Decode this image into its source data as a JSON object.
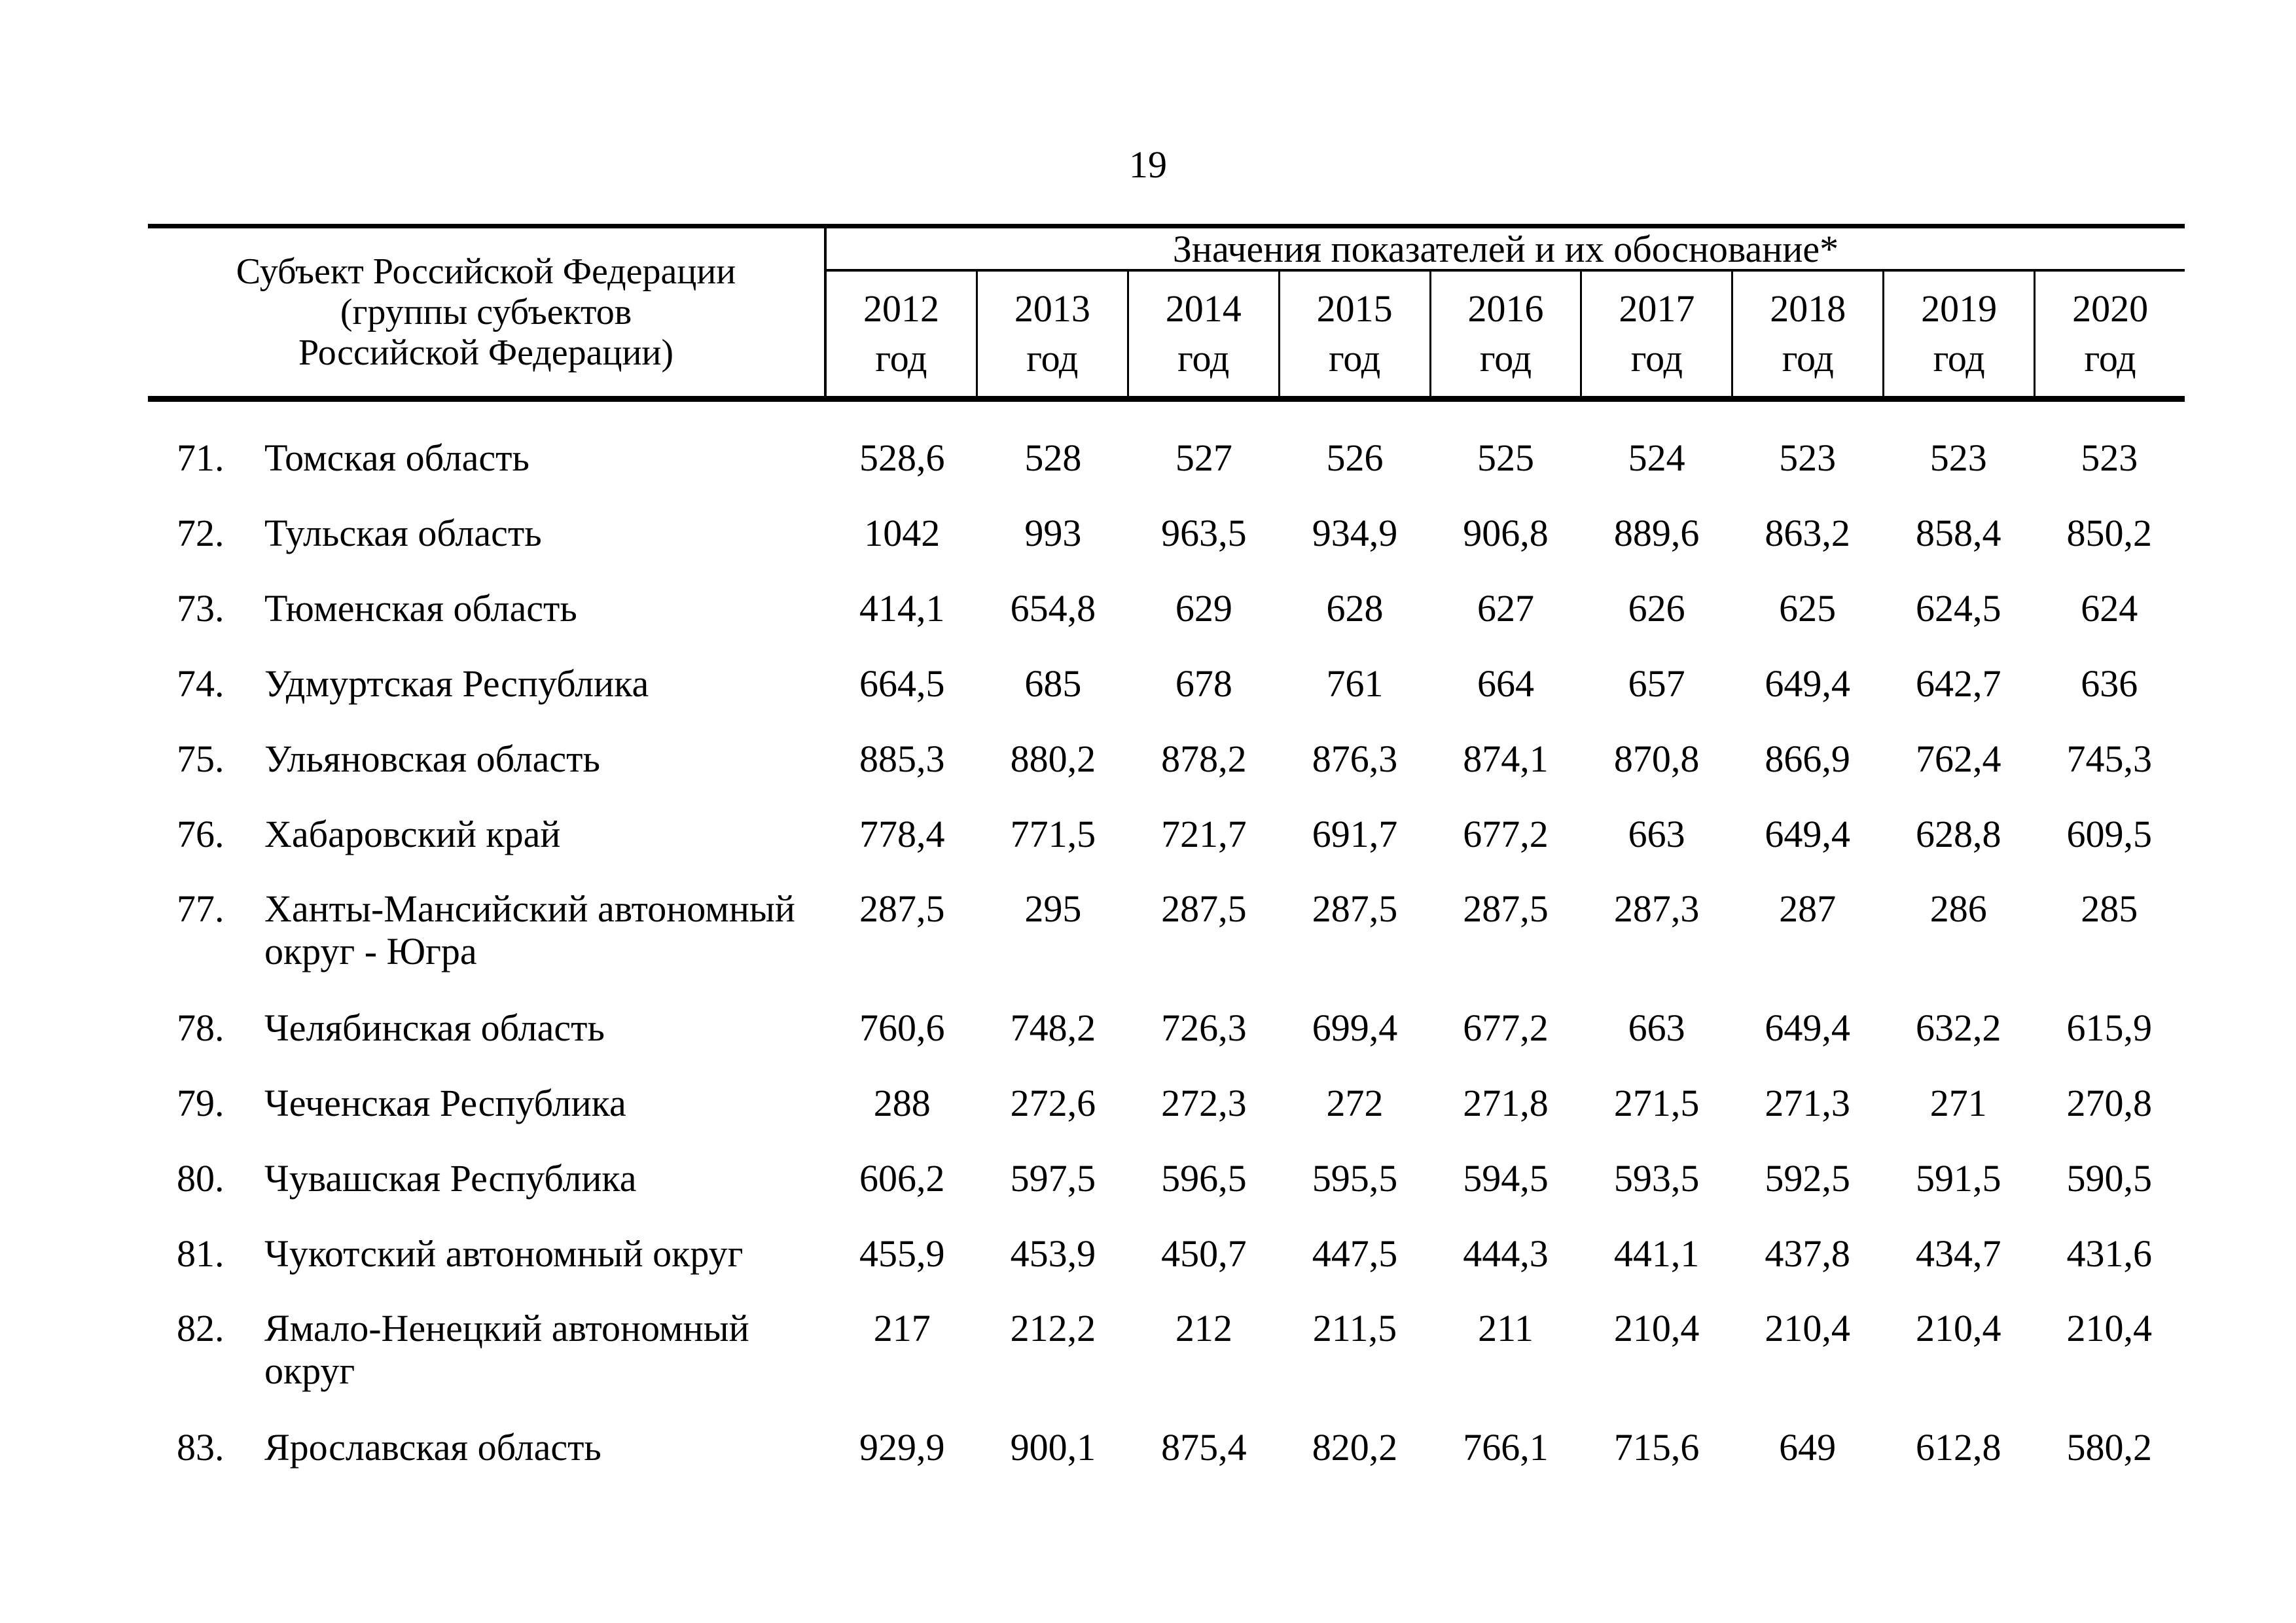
{
  "page": {
    "number": "19"
  },
  "table": {
    "subject_header_lines": [
      "Субъект Российской Федерации",
      "(группы субъектов",
      "Российской Федерации)"
    ],
    "values_header": "Значения показателей и их обоснование*",
    "years": [
      {
        "year": "2012",
        "unit": "год"
      },
      {
        "year": "2013",
        "unit": "год"
      },
      {
        "year": "2014",
        "unit": "год"
      },
      {
        "year": "2015",
        "unit": "год"
      },
      {
        "year": "2016",
        "unit": "год"
      },
      {
        "year": "2017",
        "unit": "год"
      },
      {
        "year": "2018",
        "unit": "год"
      },
      {
        "year": "2019",
        "unit": "год"
      },
      {
        "year": "2020",
        "unit": "год"
      }
    ],
    "rows": [
      {
        "num": "71.",
        "name": "Томская область",
        "name2": "",
        "values": [
          "528,6",
          "528",
          "527",
          "526",
          "525",
          "524",
          "523",
          "523",
          "523"
        ]
      },
      {
        "num": "72.",
        "name": "Тульская область",
        "name2": "",
        "values": [
          "1042",
          "993",
          "963,5",
          "934,9",
          "906,8",
          "889,6",
          "863,2",
          "858,4",
          "850,2"
        ]
      },
      {
        "num": "73.",
        "name": "Тюменская область",
        "name2": "",
        "values": [
          "414,1",
          "654,8",
          "629",
          "628",
          "627",
          "626",
          "625",
          "624,5",
          "624"
        ]
      },
      {
        "num": "74.",
        "name": "Удмуртская Республика",
        "name2": "",
        "values": [
          "664,5",
          "685",
          "678",
          "761",
          "664",
          "657",
          "649,4",
          "642,7",
          "636"
        ]
      },
      {
        "num": "75.",
        "name": "Ульяновская область",
        "name2": "",
        "values": [
          "885,3",
          "880,2",
          "878,2",
          "876,3",
          "874,1",
          "870,8",
          "866,9",
          "762,4",
          "745,3"
        ]
      },
      {
        "num": "76.",
        "name": "Хабаровский край",
        "name2": "",
        "values": [
          "778,4",
          "771,5",
          "721,7",
          "691,7",
          "677,2",
          "663",
          "649,4",
          "628,8",
          "609,5"
        ]
      },
      {
        "num": "77.",
        "name": "Ханты-Мансийский автономный",
        "name2": "округ - Югра",
        "values": [
          "287,5",
          "295",
          "287,5",
          "287,5",
          "287,5",
          "287,3",
          "287",
          "286",
          "285"
        ]
      },
      {
        "num": "78.",
        "name": "Челябинская область",
        "name2": "",
        "values": [
          "760,6",
          "748,2",
          "726,3",
          "699,4",
          "677,2",
          "663",
          "649,4",
          "632,2",
          "615,9"
        ]
      },
      {
        "num": "79.",
        "name": "Чеченская Республика",
        "name2": "",
        "values": [
          "288",
          "272,6",
          "272,3",
          "272",
          "271,8",
          "271,5",
          "271,3",
          "271",
          "270,8"
        ]
      },
      {
        "num": "80.",
        "name": "Чувашская Республика",
        "name2": "",
        "values": [
          "606,2",
          "597,5",
          "596,5",
          "595,5",
          "594,5",
          "593,5",
          "592,5",
          "591,5",
          "590,5"
        ]
      },
      {
        "num": "81.",
        "name": "Чукотский автономный округ",
        "name2": "",
        "values": [
          "455,9",
          "453,9",
          "450,7",
          "447,5",
          "444,3",
          "441,1",
          "437,8",
          "434,7",
          "431,6"
        ]
      },
      {
        "num": "82.",
        "name": "Ямало-Ненецкий автономный",
        "name2": "округ",
        "values": [
          "217",
          "212,2",
          "212",
          "211,5",
          "211",
          "210,4",
          "210,4",
          "210,4",
          "210,4"
        ]
      },
      {
        "num": "83.",
        "name": "Ярославская область",
        "name2": "",
        "values": [
          "929,9",
          "900,1",
          "875,4",
          "820,2",
          "766,1",
          "715,6",
          "649",
          "612,8",
          "580,2"
        ]
      }
    ]
  }
}
